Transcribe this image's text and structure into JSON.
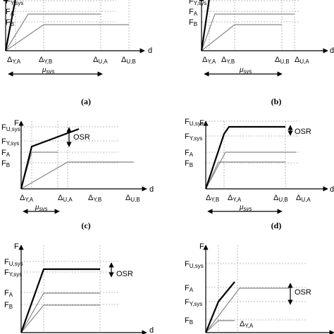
{
  "panels": [
    {
      "caption": "(a)",
      "axis_x": "d",
      "y_labels": [
        {
          "main": "F",
          "sub": "Y,sys"
        },
        {
          "main": "F",
          "sub": "A"
        },
        {
          "main": "F",
          "sub": "B"
        }
      ],
      "x_labels": [
        {
          "main": "Δ",
          "sub": "Y,A"
        },
        {
          "main": "Δ",
          "sub": "Y,B"
        },
        {
          "main": "Δ",
          "sub": "U,A"
        },
        {
          "main": "Δ",
          "sub": "U,B"
        }
      ],
      "ductility": {
        "main": "μ",
        "sub": "sys"
      }
    },
    {
      "caption": "(b)",
      "axis_x": "d",
      "y_labels": [
        {
          "main": "F",
          "sub": "Y,sys"
        },
        {
          "main": "F",
          "sub": "A"
        },
        {
          "main": "F",
          "sub": "B"
        }
      ],
      "x_labels": [
        {
          "main": "Δ",
          "sub": "Y,A"
        },
        {
          "main": "Δ",
          "sub": "Y,B"
        },
        {
          "main": "Δ",
          "sub": "U,B"
        },
        {
          "main": "Δ",
          "sub": "U,A"
        }
      ],
      "ductility": {
        "main": "μ",
        "sub": "sys"
      }
    },
    {
      "caption": "(c)",
      "axis_x": "d",
      "axis_y": "F",
      "osr": "OSR",
      "y_labels": [
        {
          "main": "F",
          "sub": "U,sys"
        },
        {
          "main": "F",
          "sub": "Y,sys"
        },
        {
          "main": "F",
          "sub": "A"
        },
        {
          "main": "F",
          "sub": "B"
        }
      ],
      "x_labels": [
        {
          "main": "Δ",
          "sub": "Y,A"
        },
        {
          "main": "Δ",
          "sub": "U,A"
        },
        {
          "main": "Δ",
          "sub": "Y,B"
        },
        {
          "main": "Δ",
          "sub": "U,B"
        }
      ],
      "ductility": {
        "main": "μ",
        "sub": "sys"
      }
    },
    {
      "caption": "(d)",
      "axis_x": "d",
      "axis_y": "F",
      "osr": "OSR",
      "y_labels": [
        {
          "main": "F",
          "sub": "U,sys"
        },
        {
          "main": "F",
          "sub": "Y,sys"
        },
        {
          "main": "F",
          "sub": "A"
        },
        {
          "main": "F",
          "sub": "B"
        }
      ],
      "x_labels": [
        {
          "main": "Δ",
          "sub": "Y,B"
        },
        {
          "main": "Δ",
          "sub": "Y,A"
        },
        {
          "main": "Δ",
          "sub": "U,B"
        },
        {
          "main": "Δ",
          "sub": "U,A"
        }
      ],
      "ductility": {
        "main": "μ",
        "sub": "sys"
      }
    },
    {
      "axis_x": "d",
      "axis_y": "F",
      "osr": "OSR",
      "y_labels": [
        {
          "main": "F",
          "sub": "U,sys"
        },
        {
          "main": "F",
          "sub": "Y,sys"
        },
        {
          "main": "F",
          "sub": "A"
        },
        {
          "main": "F",
          "sub": "B"
        }
      ],
      "x_labels": []
    },
    {
      "axis_y": "F",
      "osr": "OSR",
      "y_labels": [
        {
          "main": "F",
          "sub": "U,sys"
        },
        {
          "main": "F",
          "sub": "A"
        },
        {
          "main": "F",
          "sub": "Y,sys"
        },
        {
          "main": "F",
          "sub": "B"
        }
      ],
      "x_labels": [
        {
          "main": "Δ",
          "sub": "Y,A"
        }
      ]
    }
  ]
}
